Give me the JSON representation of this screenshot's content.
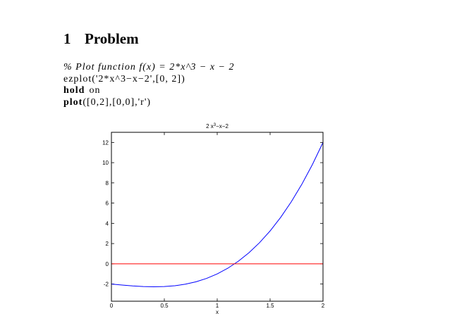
{
  "section": {
    "number": "1",
    "title": "Problem"
  },
  "code": [
    [
      "% Plot function f(x) = 2*x^3 − x − 2"
    ],
    [
      "ezplot('2*x^3−x−2',[0, 2])"
    ],
    [
      "hold",
      "on"
    ],
    [
      "plot",
      "([0,2],[0,0],'r')"
    ]
  ],
  "chart_data": {
    "type": "line",
    "title": [
      "2 x",
      "3",
      "−x−2"
    ],
    "xlabel": "x",
    "xlim": [
      0,
      2
    ],
    "ylim": [
      -3.7,
      13
    ],
    "xticks": [
      0,
      0.5,
      1,
      1.5,
      2
    ],
    "yticks": [
      -2,
      0,
      2,
      4,
      6,
      8,
      10,
      12
    ],
    "series": [
      {
        "color": "#0000ff",
        "x": [
          0,
          0.1,
          0.2,
          0.3,
          0.4,
          0.5,
          0.6,
          0.7,
          0.8,
          0.9,
          1,
          1.1,
          1.2,
          1.3,
          1.4,
          1.5,
          1.6,
          1.7,
          1.8,
          1.9,
          2
        ],
        "values": [
          -2,
          -2.098,
          -2.184,
          -2.246,
          -2.272,
          -2.25,
          -2.168,
          -2.014,
          -1.776,
          -1.442,
          -1,
          -0.438,
          0.256,
          1.094,
          2.088,
          3.25,
          4.592,
          6.126,
          7.864,
          9.818,
          12
        ]
      },
      {
        "color": "#ff0000",
        "x": [
          0,
          2
        ],
        "values": [
          0,
          0
        ]
      }
    ]
  }
}
